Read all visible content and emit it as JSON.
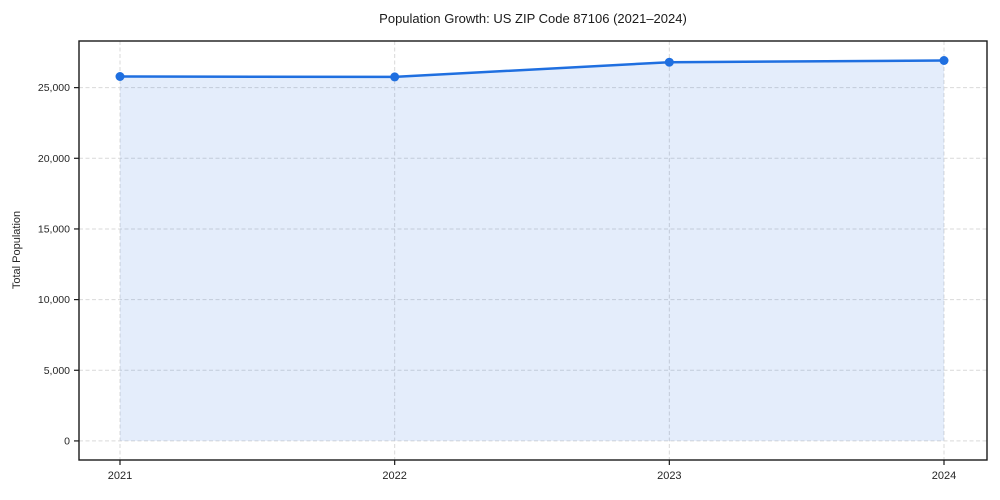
{
  "chart_data": {
    "type": "area",
    "title": "Population Growth: US ZIP Code 87106 (2021–2024)",
    "xlabel": "",
    "ylabel": "Total Population",
    "x": [
      "2021",
      "2022",
      "2023",
      "2024"
    ],
    "series": [
      {
        "name": "Total Population",
        "values": [
          25790,
          25760,
          26800,
          26920
        ]
      }
    ],
    "ylim": [
      -1350,
      28300
    ],
    "yticks": [
      0,
      5000,
      10000,
      15000,
      20000,
      25000
    ],
    "grid": true,
    "grid_style": "dashed",
    "legend_position": "none",
    "colors": {
      "line": "#1f6fe0",
      "marker": "#1f6fe0",
      "fill": "rgba(31,111,224,0.12)",
      "grid": "#d9d9d9",
      "spine": "#1a1a1a",
      "tick_text": "#262626"
    }
  }
}
